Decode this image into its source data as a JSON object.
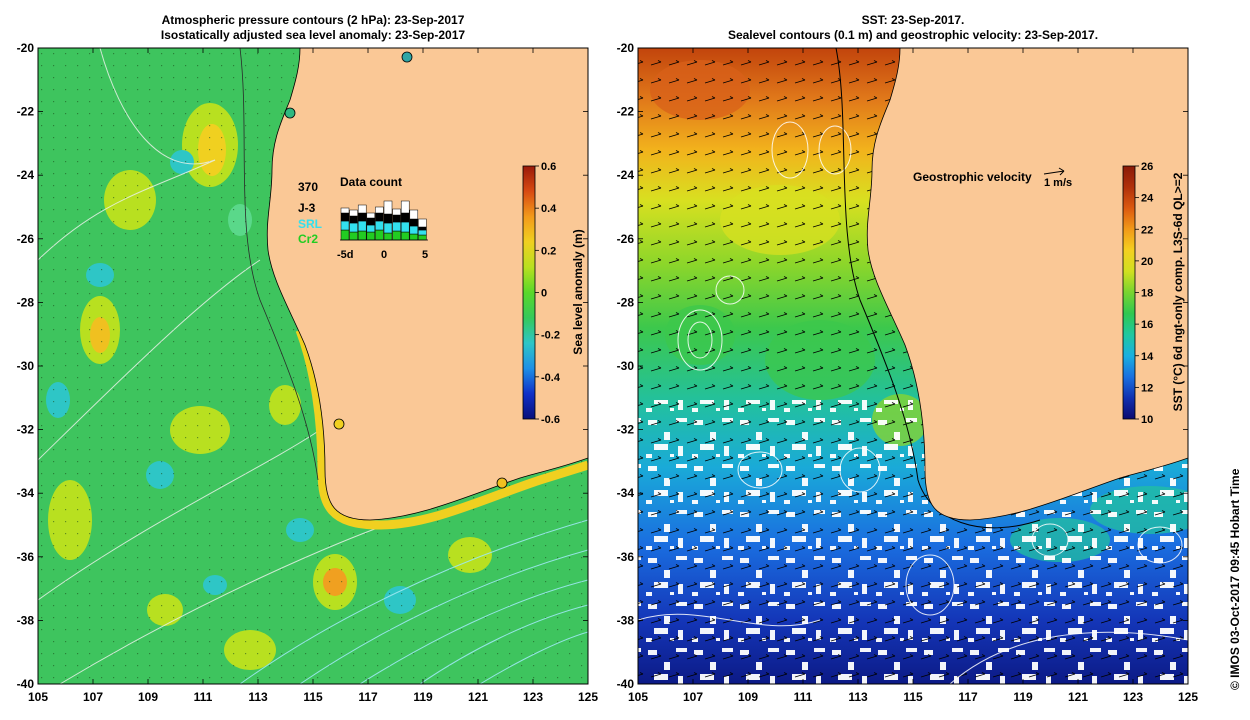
{
  "left_panel": {
    "title_line1": "Atmospheric pressure contours (2 hPa): 23-Sep-2017",
    "title_line2": "Isostatically adjusted sea level anomaly: 23-Sep-2017",
    "colorbar": {
      "label": "Sea level anomaly (m)",
      "ticks": [
        "0.6",
        "0.4",
        "0.2",
        "0",
        "-0.2",
        "-0.4",
        "-0.6"
      ],
      "colors": [
        "#08107a",
        "#1030c8",
        "#1e90e6",
        "#2ec6c6",
        "#36c95a",
        "#5ad82a",
        "#b8e020",
        "#f0d020",
        "#f29a1a",
        "#d84a12",
        "#9a1a0a"
      ]
    },
    "inset": {
      "title": "Data count",
      "max_label": "370",
      "missions": [
        {
          "name": "J-3",
          "color": "#000000"
        },
        {
          "name": "SRL",
          "color": "#33e0ee"
        },
        {
          "name": "Cr2",
          "color": "#22cc22"
        }
      ],
      "x_ticks": [
        "-5d",
        "0",
        "5"
      ]
    }
  },
  "right_panel": {
    "title_line1": "SST: 23-Sep-2017.",
    "title_line2": "Sealevel contours (0.1 m) and geostrophic velocity: 23-Sep-2017.",
    "colorbar": {
      "label": "SST (°C) 6d ngt-only comp. L3S-6d QL>=2",
      "ticks": [
        "26",
        "24",
        "22",
        "20",
        "18",
        "16",
        "14",
        "12",
        "10"
      ],
      "colors": [
        "#0a0a70",
        "#1030b0",
        "#1a70e0",
        "#1ab0e0",
        "#20c8a0",
        "#30c850",
        "#78d430",
        "#d0e020",
        "#f4d020",
        "#f29a18",
        "#dc5a10",
        "#b0300a",
        "#8a1a08"
      ]
    },
    "velocity_legend": {
      "label": "Geostrophic velocity",
      "unit": "1 m/s"
    }
  },
  "axes": {
    "x_ticks": [
      "105",
      "107",
      "109",
      "111",
      "113",
      "115",
      "117",
      "119",
      "121",
      "123",
      "125"
    ],
    "y_ticks": [
      "-20",
      "-22",
      "-24",
      "-26",
      "-28",
      "-30",
      "-32",
      "-34",
      "-36",
      "-38",
      "-40"
    ]
  },
  "colors": {
    "land": "#fac896",
    "ocean_green": "#3ec45e"
  },
  "copyright": "© IMOS 03-Oct-2017 09:45 Hobart Time"
}
